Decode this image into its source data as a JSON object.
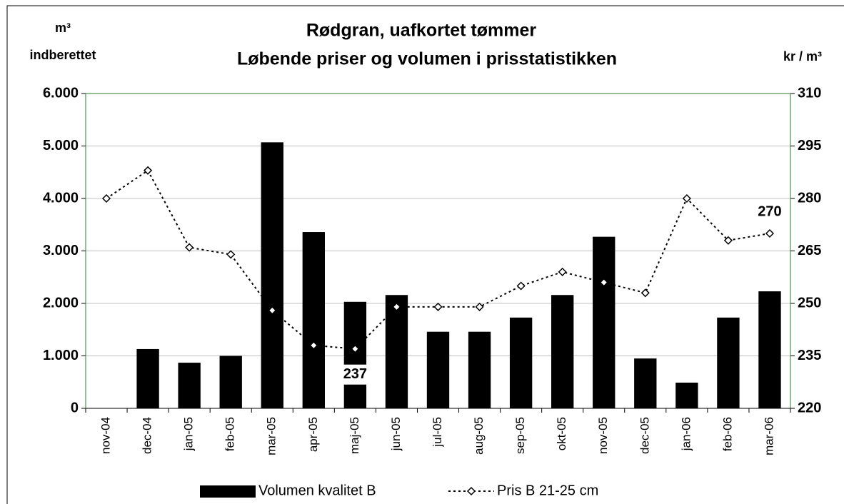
{
  "chart_data": {
    "type": "bar-line",
    "title": "Rødgran, uafkortet tømmer",
    "subtitle": "Løbende priser og volumen i prisstatistikken",
    "y_label": [
      "m³",
      "indberettet"
    ],
    "y2_label": "kr / m³",
    "categories": [
      "nov-04",
      "dec-04",
      "jan-05",
      "feb-05",
      "mar-05",
      "apr-05",
      "maj-05",
      "jun-05",
      "jul-05",
      "aug-05",
      "sep-05",
      "okt-05",
      "nov-05",
      "dec-05",
      "jan-06",
      "feb-06",
      "mar-06"
    ],
    "series": [
      {
        "name": "Volumen kvalitet B",
        "type": "bar",
        "color": "#000000",
        "values": [
          0,
          1130,
          870,
          1000,
          5070,
          3360,
          2030,
          2160,
          1460,
          1460,
          1730,
          2160,
          3270,
          950,
          490,
          1730,
          2230
        ]
      },
      {
        "name": "Pris B 21-25 cm",
        "type": "line",
        "axis": "y2",
        "color": "#000000",
        "values": [
          280,
          288,
          266,
          264,
          248,
          238,
          237,
          249,
          249,
          249,
          255,
          259,
          256,
          253,
          280,
          268,
          270
        ],
        "value_labels": [
          null,
          null,
          null,
          null,
          null,
          null,
          "237",
          null,
          null,
          null,
          null,
          null,
          null,
          null,
          null,
          null,
          "270"
        ]
      }
    ],
    "ylim": [
      0,
      6000
    ],
    "yticks": [
      0,
      {
        "value": 1000,
        "label": "1.000"
      },
      {
        "value": 2000,
        "label": "2.000"
      },
      {
        "value": 3000,
        "label": "3.000"
      },
      {
        "value": 4000,
        "label": "4.000"
      },
      {
        "value": 5000,
        "label": "5.000"
      },
      {
        "value": 6000,
        "label": "6.000"
      }
    ],
    "y2lim": [
      220,
      310
    ],
    "y2ticks": [
      220,
      235,
      250,
      265,
      280,
      295,
      310
    ],
    "grid": true
  }
}
